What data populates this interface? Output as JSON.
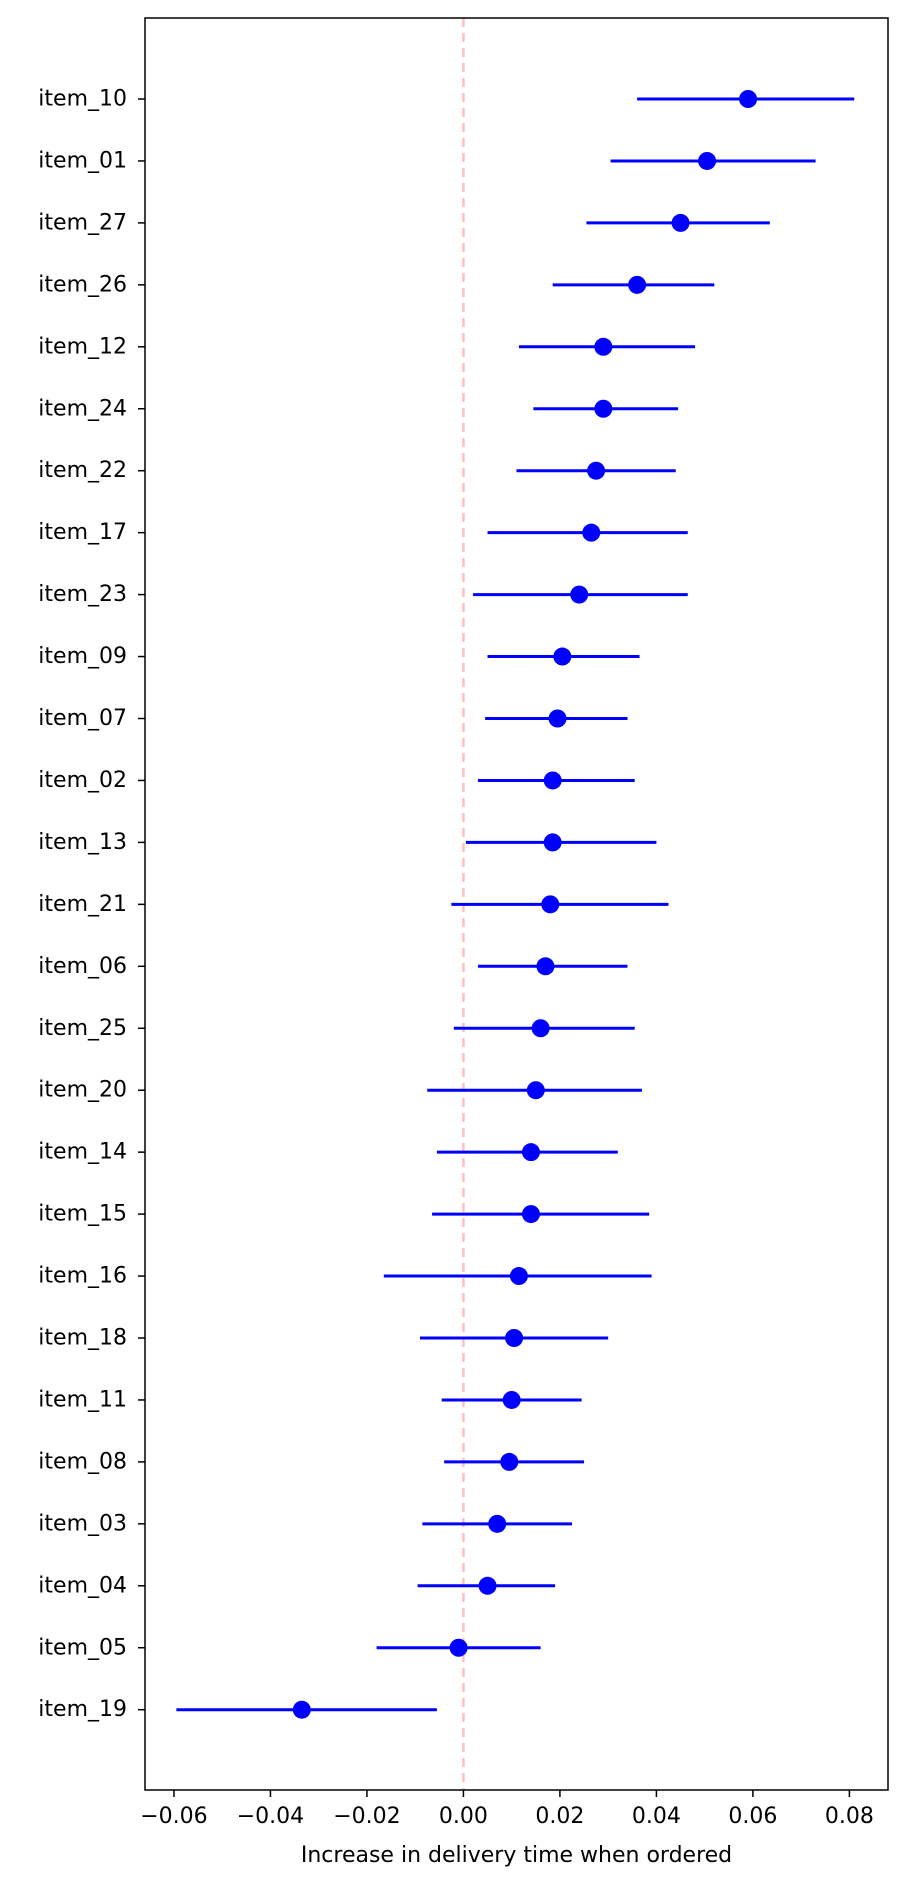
{
  "chart_data": {
    "type": "scatter",
    "subtype": "forest-plot",
    "title": "",
    "xlabel": "Increase in delivery time when ordered",
    "ylabel": "",
    "xlim": [
      -0.066,
      0.088
    ],
    "xticks": [
      -0.06,
      -0.04,
      -0.02,
      0.0,
      0.02,
      0.04,
      0.06,
      0.08
    ],
    "xtick_labels": [
      "−0.06",
      "−0.04",
      "−0.02",
      "0.00",
      "0.02",
      "0.04",
      "0.06",
      "0.08"
    ],
    "grid": false,
    "reference_line": {
      "x": 0.0,
      "style": "dashed",
      "color": "#ffc0c0"
    },
    "point_color": "#0000ff",
    "items": [
      {
        "label": "item_10",
        "estimate": 0.059,
        "lower": 0.036,
        "upper": 0.081
      },
      {
        "label": "item_01",
        "estimate": 0.0505,
        "lower": 0.0305,
        "upper": 0.073
      },
      {
        "label": "item_27",
        "estimate": 0.045,
        "lower": 0.0255,
        "upper": 0.0635
      },
      {
        "label": "item_26",
        "estimate": 0.036,
        "lower": 0.0185,
        "upper": 0.052
      },
      {
        "label": "item_12",
        "estimate": 0.029,
        "lower": 0.0115,
        "upper": 0.048
      },
      {
        "label": "item_24",
        "estimate": 0.029,
        "lower": 0.0145,
        "upper": 0.0445
      },
      {
        "label": "item_22",
        "estimate": 0.0275,
        "lower": 0.011,
        "upper": 0.044
      },
      {
        "label": "item_17",
        "estimate": 0.0265,
        "lower": 0.005,
        "upper": 0.0465
      },
      {
        "label": "item_23",
        "estimate": 0.024,
        "lower": 0.002,
        "upper": 0.0465
      },
      {
        "label": "item_09",
        "estimate": 0.0205,
        "lower": 0.005,
        "upper": 0.0365
      },
      {
        "label": "item_07",
        "estimate": 0.0195,
        "lower": 0.0045,
        "upper": 0.034
      },
      {
        "label": "item_02",
        "estimate": 0.0185,
        "lower": 0.003,
        "upper": 0.0355
      },
      {
        "label": "item_13",
        "estimate": 0.0185,
        "lower": 0.0005,
        "upper": 0.04
      },
      {
        "label": "item_21",
        "estimate": 0.018,
        "lower": -0.0025,
        "upper": 0.0425
      },
      {
        "label": "item_06",
        "estimate": 0.017,
        "lower": 0.003,
        "upper": 0.034
      },
      {
        "label": "item_25",
        "estimate": 0.016,
        "lower": -0.002,
        "upper": 0.0355
      },
      {
        "label": "item_20",
        "estimate": 0.015,
        "lower": -0.0075,
        "upper": 0.037
      },
      {
        "label": "item_14",
        "estimate": 0.014,
        "lower": -0.0055,
        "upper": 0.032
      },
      {
        "label": "item_15",
        "estimate": 0.014,
        "lower": -0.0065,
        "upper": 0.0385
      },
      {
        "label": "item_16",
        "estimate": 0.0115,
        "lower": -0.0165,
        "upper": 0.039
      },
      {
        "label": "item_18",
        "estimate": 0.0105,
        "lower": -0.009,
        "upper": 0.03
      },
      {
        "label": "item_11",
        "estimate": 0.01,
        "lower": -0.0045,
        "upper": 0.0245
      },
      {
        "label": "item_08",
        "estimate": 0.0095,
        "lower": -0.004,
        "upper": 0.025
      },
      {
        "label": "item_03",
        "estimate": 0.007,
        "lower": -0.0085,
        "upper": 0.0225
      },
      {
        "label": "item_04",
        "estimate": 0.005,
        "lower": -0.0095,
        "upper": 0.019
      },
      {
        "label": "item_05",
        "estimate": -0.001,
        "lower": -0.018,
        "upper": 0.016
      },
      {
        "label": "item_19",
        "estimate": -0.0335,
        "lower": -0.0595,
        "upper": -0.0055
      }
    ]
  }
}
